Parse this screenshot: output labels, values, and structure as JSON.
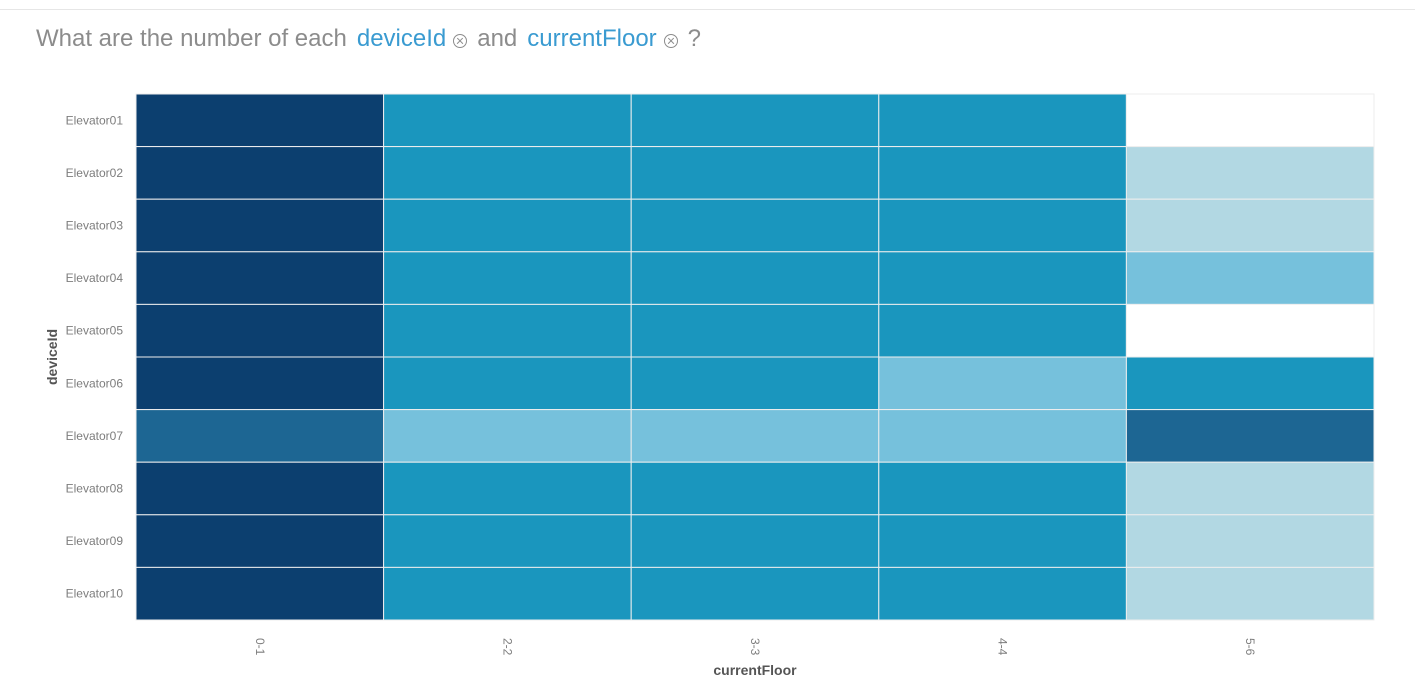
{
  "question": {
    "prefix": "What are the number of each",
    "chip1": "deviceId",
    "conjunction": "and",
    "chip2": "currentFloor",
    "suffix": "?"
  },
  "icons": {
    "remove_chip": "close-circle-icon"
  },
  "colors": {
    "chip": "#3a9bd1",
    "scale": [
      "#ffffff",
      "#b2d8e3",
      "#76c1dc",
      "#1a96be",
      "#1d6693",
      "#0c3f6f"
    ]
  },
  "chart_data": {
    "type": "heatmap",
    "xlabel": "currentFloor",
    "ylabel": "deviceId",
    "x_categories": [
      "0-1",
      "2-2",
      "3-3",
      "4-4",
      "5-6"
    ],
    "y_categories": [
      "Elevator01",
      "Elevator02",
      "Elevator03",
      "Elevator04",
      "Elevator05",
      "Elevator06",
      "Elevator07",
      "Elevator08",
      "Elevator09",
      "Elevator10"
    ],
    "values": [
      [
        5,
        3,
        3,
        3,
        0
      ],
      [
        5,
        3,
        3,
        3,
        1
      ],
      [
        5,
        3,
        3,
        3,
        1
      ],
      [
        5,
        3,
        3,
        3,
        2
      ],
      [
        5,
        3,
        3,
        3,
        0
      ],
      [
        5,
        3,
        3,
        2,
        3
      ],
      [
        4,
        2,
        2,
        2,
        4
      ],
      [
        5,
        3,
        3,
        3,
        1
      ],
      [
        5,
        3,
        3,
        3,
        1
      ],
      [
        5,
        3,
        3,
        3,
        1
      ]
    ],
    "value_note": "relative color intensity level (0 = lightest, 5 = darkest); exact counts not printed",
    "grid": true,
    "legend": "none"
  }
}
